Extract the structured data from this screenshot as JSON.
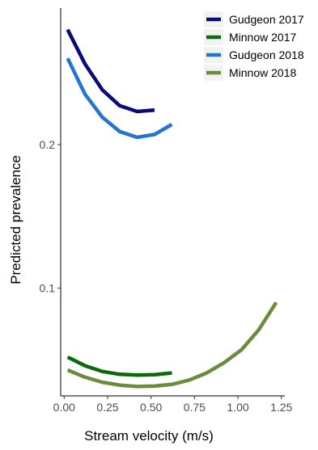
{
  "chart_data": {
    "type": "line",
    "xlabel": "Stream velocity (m/s)",
    "ylabel": "Predicted prevalence",
    "xlim": [
      -0.02,
      1.27
    ],
    "ylim": [
      0.025,
      0.295
    ],
    "x_ticks": [
      0,
      0.25,
      0.5,
      0.75,
      1,
      1.25
    ],
    "x_tick_labels": [
      "0.00",
      "0.25",
      "0.50",
      "0.75",
      "1.00",
      "1.25"
    ],
    "y_ticks": [
      0.1,
      0.2
    ],
    "y_tick_labels": [
      "0.1",
      "0.2"
    ],
    "legend_position": "top-right",
    "grid": false,
    "series": [
      {
        "name": "Gudgeon 2017",
        "color": "#0a0a78",
        "x": [
          0.02,
          0.12,
          0.22,
          0.32,
          0.42,
          0.52
        ],
        "y": [
          0.28,
          0.256,
          0.238,
          0.227,
          0.223,
          0.224
        ]
      },
      {
        "name": "Minnow 2017",
        "color": "#0b6b0b",
        "x": [
          0.02,
          0.12,
          0.22,
          0.32,
          0.42,
          0.52,
          0.62
        ],
        "y": [
          0.052,
          0.046,
          0.042,
          0.04,
          0.0395,
          0.0398,
          0.041
        ]
      },
      {
        "name": "Gudgeon 2018",
        "color": "#2475d1",
        "x": [
          0.02,
          0.12,
          0.22,
          0.32,
          0.42,
          0.52,
          0.62
        ],
        "y": [
          0.26,
          0.235,
          0.219,
          0.209,
          0.205,
          0.207,
          0.214
        ]
      },
      {
        "name": "Minnow 2018",
        "color": "#6b8c3c",
        "x": [
          0.02,
          0.12,
          0.22,
          0.32,
          0.42,
          0.52,
          0.62,
          0.72,
          0.82,
          0.92,
          1.02,
          1.12,
          1.22
        ],
        "y": [
          0.043,
          0.038,
          0.0345,
          0.0325,
          0.0315,
          0.0318,
          0.033,
          0.036,
          0.041,
          0.048,
          0.057,
          0.071,
          0.09
        ]
      }
    ]
  }
}
